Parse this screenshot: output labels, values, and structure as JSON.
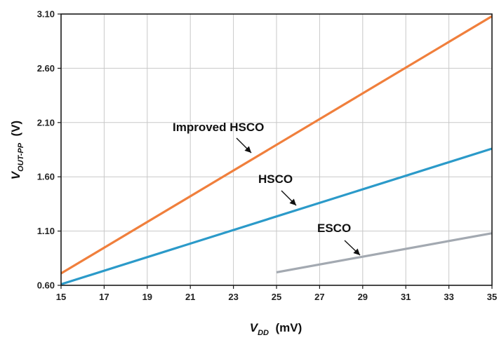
{
  "chart_data": {
    "type": "line",
    "x": [
      15,
      35
    ],
    "xlim": [
      15,
      35
    ],
    "ylim": [
      0.6,
      3.1
    ],
    "x_ticks": [
      15,
      17,
      19,
      21,
      23,
      25,
      27,
      29,
      31,
      33,
      35
    ],
    "x_tick_labels": [
      "15",
      "17",
      "19",
      "21",
      "23",
      "25",
      "27",
      "29",
      "31",
      "33",
      "35"
    ],
    "y_ticks": [
      0.6,
      1.1,
      1.6,
      2.1,
      2.6,
      3.1
    ],
    "y_tick_labels": [
      "0.60",
      "1.10",
      "1.60",
      "2.10",
      "2.60",
      "3.10"
    ],
    "xlabel": {
      "main": "V",
      "sub": "DD",
      "unit": "(mV)"
    },
    "ylabel": {
      "main": "V",
      "sub": "OUT-PP",
      "unit": "(V)"
    },
    "grid": true,
    "series": [
      {
        "name": "Improved HSCO",
        "color": "#f07f3c",
        "points": [
          [
            15,
            0.71
          ],
          [
            35,
            3.08
          ]
        ]
      },
      {
        "name": "HSCO",
        "color": "#2b9ac9",
        "points": [
          [
            15,
            0.61
          ],
          [
            35,
            1.86
          ]
        ]
      },
      {
        "name": "ESCO",
        "color": "#a3a9b1",
        "points": [
          [
            25,
            0.72
          ],
          [
            35,
            1.08
          ]
        ]
      }
    ],
    "annotations": [
      {
        "text": "Improved HSCO",
        "series": "Improved HSCO"
      },
      {
        "text": "HSCO",
        "series": "HSCO"
      },
      {
        "text": "ESCO",
        "series": "ESCO"
      }
    ]
  }
}
